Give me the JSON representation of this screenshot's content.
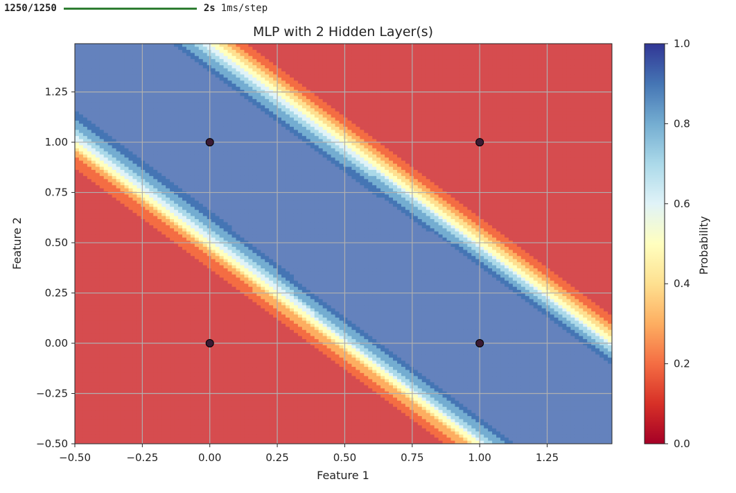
{
  "progress": {
    "count": "1250/1250",
    "time": "2s",
    "step": "1ms/step",
    "bar_color": "#2e7d32"
  },
  "chart_data": {
    "type": "contour",
    "title": "MLP with 2 Hidden Layer(s)",
    "xlabel": "Feature 1",
    "ylabel": "Feature 2",
    "xlim": [
      -0.5,
      1.49
    ],
    "ylim": [
      -0.5,
      1.49
    ],
    "x_ticks": [
      -0.5,
      -0.25,
      0.0,
      0.25,
      0.5,
      0.75,
      1.0,
      1.25
    ],
    "x_tick_labels": [
      "−0.50",
      "−0.25",
      "0.00",
      "0.25",
      "0.50",
      "0.75",
      "1.00",
      "1.25"
    ],
    "y_ticks": [
      -0.5,
      -0.25,
      0.0,
      0.25,
      0.5,
      0.75,
      1.0,
      1.25
    ],
    "y_tick_labels": [
      "−0.50",
      "−0.25",
      "0.00",
      "0.25",
      "0.50",
      "0.75",
      "1.00",
      "1.25"
    ],
    "grid": true,
    "colormap": "RdYlBu",
    "colorbar": {
      "label": "Probability",
      "range": [
        0.0,
        1.0
      ],
      "ticks": [
        0.0,
        0.2,
        0.4,
        0.6,
        0.8,
        1.0
      ],
      "tick_labels": [
        "0.0",
        "0.2",
        "0.4",
        "0.6",
        "0.8",
        "1.0"
      ]
    },
    "levels": [
      0.0,
      0.1,
      0.2,
      0.3,
      0.4,
      0.5,
      0.6,
      0.7,
      0.8,
      0.9,
      1.0
    ],
    "points": [
      {
        "x": 0,
        "y": 0
      },
      {
        "x": 0,
        "y": 1
      },
      {
        "x": 1,
        "y": 0
      },
      {
        "x": 1,
        "y": 1
      }
    ]
  }
}
